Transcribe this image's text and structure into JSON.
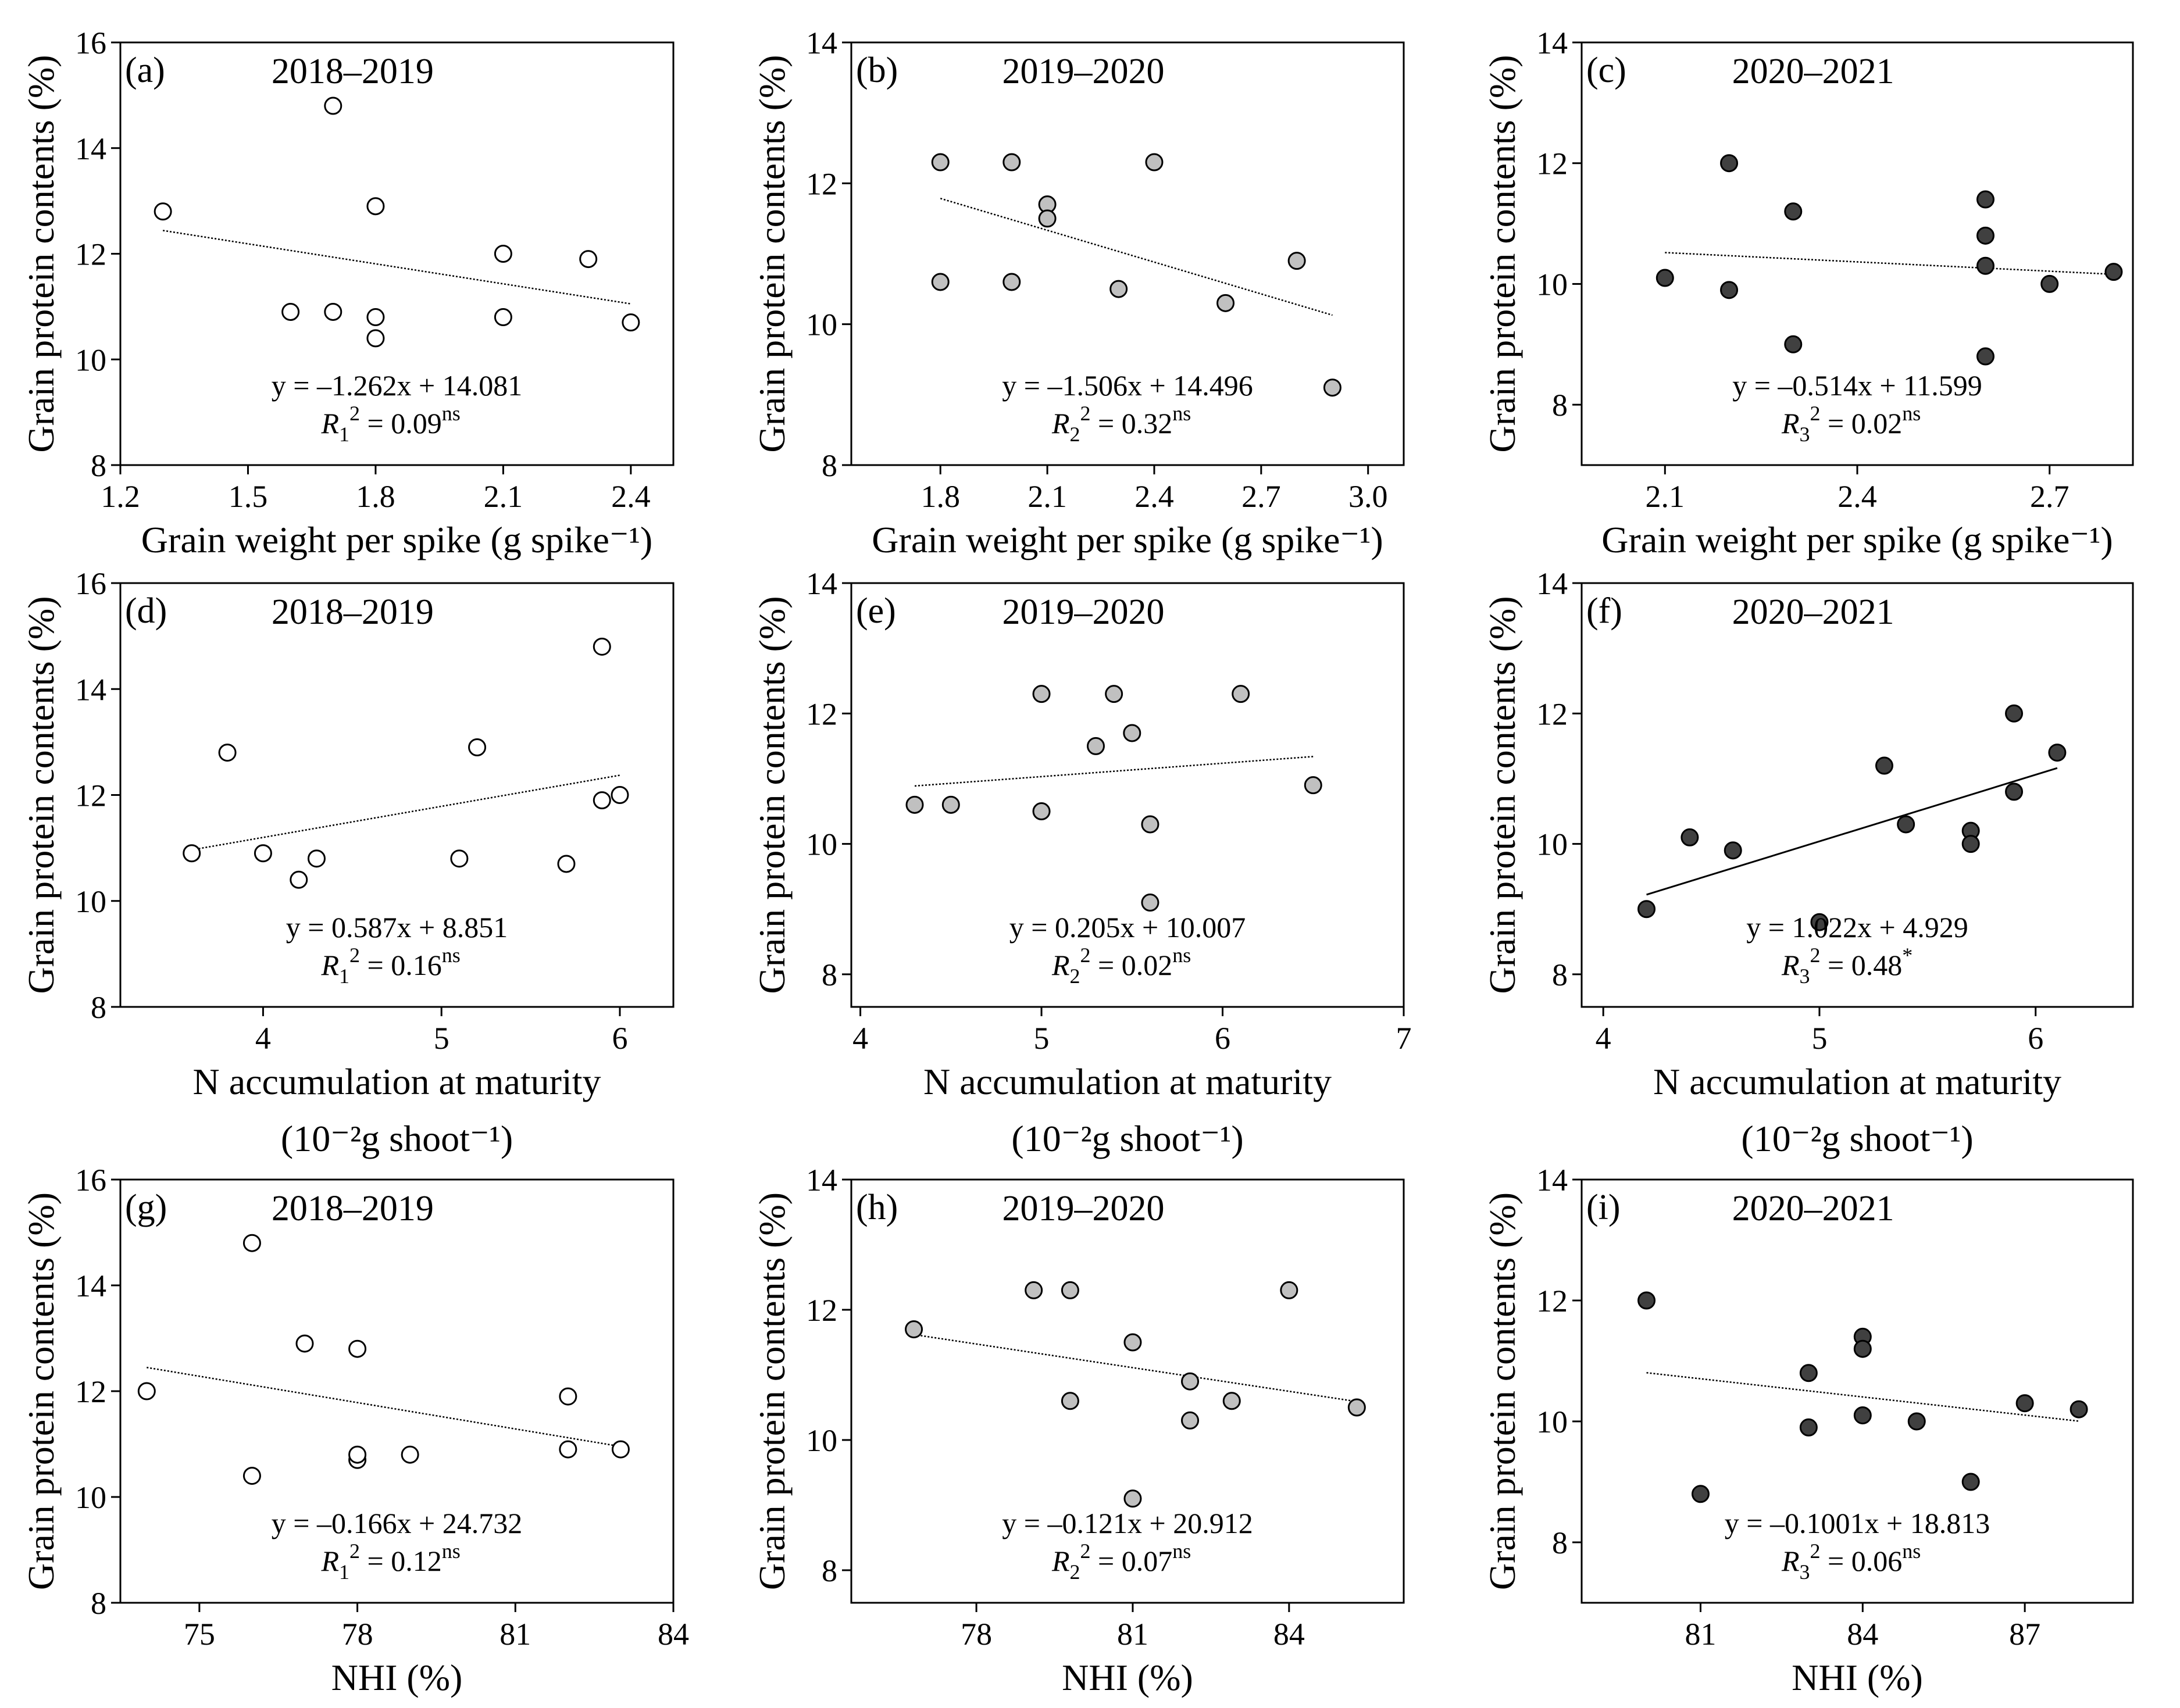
{
  "figure": {
    "panel_count": 9
  },
  "chart_data": [
    {
      "id": "a",
      "panel_label": "(a)",
      "type": "scatter",
      "title": "2018–2019",
      "xlabel": "Grain weight per spike  (g spike⁻¹)",
      "xlabel2": "",
      "ylabel": "Grain protein contents (%)",
      "xlim": [
        1.2,
        2.5
      ],
      "ylim": [
        8,
        16
      ],
      "xticks": [
        "1.2",
        "1.5",
        "1.8",
        "2.1",
        "2.4"
      ],
      "xtick_values": [
        1.2,
        1.5,
        1.8,
        2.1,
        2.4
      ],
      "yticks": [
        "8",
        "10",
        "12",
        "14",
        "16"
      ],
      "ytick_values": [
        8,
        10,
        12,
        14,
        16
      ],
      "series": [
        {
          "name": "2018–2019",
          "marker_color": "#ffffff",
          "x": [
            1.3,
            1.6,
            1.7,
            1.7,
            1.8,
            1.8,
            1.8,
            2.1,
            2.1,
            2.3,
            2.4
          ],
          "y": [
            12.8,
            10.9,
            14.8,
            10.9,
            12.9,
            10.8,
            10.4,
            12.0,
            10.8,
            11.9,
            10.7
          ]
        }
      ],
      "fit": {
        "slope": -1.262,
        "intercept": 14.081,
        "x_range": [
          1.3,
          2.4
        ],
        "style": "dotted"
      },
      "equation": "y = –1.262x + 14.081",
      "r2_label": "R",
      "r2_sub": "1",
      "r2_sup": "2",
      "r2_value": "= 0.09",
      "significance": "ns"
    },
    {
      "id": "b",
      "panel_label": "(b)",
      "type": "scatter",
      "title": "2019–2020",
      "xlabel": "Grain weight per spike  (g spike⁻¹)",
      "xlabel2": "",
      "ylabel": "Grain protein contents (%)",
      "xlim": [
        1.55,
        3.1
      ],
      "ylim": [
        8,
        14
      ],
      "xticks": [
        "1.8",
        "2.1",
        "2.4",
        "2.7",
        "3.0"
      ],
      "xtick_values": [
        1.8,
        2.1,
        2.4,
        2.7,
        3.0
      ],
      "yticks": [
        "8",
        "10",
        "12",
        "14"
      ],
      "ytick_values": [
        8,
        10,
        12,
        14
      ],
      "series": [
        {
          "name": "2019–2020",
          "marker_color": "#c0c0c0",
          "x": [
            1.8,
            1.8,
            2.0,
            2.0,
            2.1,
            2.1,
            2.3,
            2.4,
            2.6,
            2.8,
            2.9
          ],
          "y": [
            12.3,
            10.6,
            12.3,
            10.6,
            11.7,
            11.5,
            10.5,
            12.3,
            10.3,
            10.9,
            9.1
          ]
        }
      ],
      "fit": {
        "slope": -1.506,
        "intercept": 14.496,
        "x_range": [
          1.8,
          2.9
        ],
        "style": "dotted"
      },
      "equation": "y = –1.506x + 14.496",
      "r2_label": "R",
      "r2_sub": "2",
      "r2_sup": "2",
      "r2_value": "= 0.32",
      "significance": "ns"
    },
    {
      "id": "c",
      "panel_label": "(c)",
      "type": "scatter",
      "title": "2020–2021",
      "xlabel": "Grain weight per spike  (g spike⁻¹)",
      "xlabel2": "",
      "ylabel": "Grain protein contents (%)",
      "xlim": [
        1.97,
        2.83
      ],
      "ylim": [
        7,
        14
      ],
      "xticks": [
        "2.1",
        "2.4",
        "2.7"
      ],
      "xtick_values": [
        2.1,
        2.4,
        2.7
      ],
      "yticks": [
        "8",
        "10",
        "12",
        "14"
      ],
      "ytick_values": [
        8,
        10,
        12,
        14
      ],
      "series": [
        {
          "name": "2020–2021",
          "marker_color": "#404040",
          "x": [
            2.1,
            2.2,
            2.2,
            2.3,
            2.3,
            2.6,
            2.6,
            2.6,
            2.6,
            2.7,
            2.8
          ],
          "y": [
            10.1,
            12.0,
            9.9,
            11.2,
            9.0,
            11.4,
            10.8,
            10.3,
            8.8,
            10.0,
            10.2
          ]
        }
      ],
      "fit": {
        "slope": -0.514,
        "intercept": 11.599,
        "x_range": [
          2.1,
          2.8
        ],
        "style": "dotted"
      },
      "equation": "y = –0.514x + 11.599",
      "r2_label": "R",
      "r2_sub": "3",
      "r2_sup": "2",
      "r2_value": "= 0.02",
      "significance": "ns"
    },
    {
      "id": "d",
      "panel_label": "(d)",
      "type": "scatter",
      "title": "2018–2019",
      "xlabel": "N accumulation at maturity",
      "xlabel2": "(10⁻²g shoot⁻¹)",
      "ylabel": "Grain protein contents (%)",
      "xlim": [
        3.2,
        6.3
      ],
      "ylim": [
        8,
        16
      ],
      "xticks": [
        "4",
        "5",
        "6"
      ],
      "xtick_values": [
        4,
        5,
        6
      ],
      "yticks": [
        "8",
        "10",
        "12",
        "14",
        "16"
      ],
      "ytick_values": [
        8,
        10,
        12,
        14,
        16
      ],
      "series": [
        {
          "name": "2018–2019",
          "marker_color": "#ffffff",
          "x": [
            3.6,
            3.8,
            4.0,
            4.2,
            4.3,
            5.1,
            5.2,
            5.7,
            5.9,
            5.9,
            6.0
          ],
          "y": [
            10.9,
            12.8,
            10.9,
            10.4,
            10.8,
            10.8,
            12.9,
            10.7,
            14.8,
            11.9,
            12.0
          ]
        }
      ],
      "fit": {
        "slope": 0.587,
        "intercept": 8.851,
        "x_range": [
          3.6,
          6.0
        ],
        "style": "dotted"
      },
      "equation": "y = 0.587x + 8.851",
      "r2_label": "R",
      "r2_sub": "1",
      "r2_sup": "2",
      "r2_value": "= 0.16",
      "significance": "ns"
    },
    {
      "id": "e",
      "panel_label": "(e)",
      "type": "scatter",
      "title": "2019–2020",
      "xlabel": "N accumulation at maturity",
      "xlabel2": "(10⁻²g shoot⁻¹)",
      "ylabel": "Grain protein contents (%)",
      "xlim": [
        3.95,
        7.0
      ],
      "ylim": [
        7.5,
        14
      ],
      "xticks": [
        "4",
        "5",
        "6",
        "7"
      ],
      "xtick_values": [
        4,
        5,
        6,
        7
      ],
      "yticks": [
        "8",
        "10",
        "12",
        "14"
      ],
      "ytick_values": [
        8,
        10,
        12,
        14
      ],
      "series": [
        {
          "name": "2019–2020",
          "marker_color": "#c0c0c0",
          "x": [
            4.3,
            4.5,
            5.0,
            5.0,
            5.3,
            5.4,
            5.5,
            5.6,
            5.6,
            6.1,
            6.5
          ],
          "y": [
            10.6,
            10.6,
            12.3,
            10.5,
            11.5,
            12.3,
            11.7,
            10.3,
            9.1,
            12.3,
            10.9
          ]
        }
      ],
      "fit": {
        "slope": 0.205,
        "intercept": 10.007,
        "x_range": [
          4.3,
          6.5
        ],
        "style": "dotted"
      },
      "equation": "y = 0.205x + 10.007",
      "r2_label": "R",
      "r2_sub": "2",
      "r2_sup": "2",
      "r2_value": "= 0.02",
      "significance": "ns"
    },
    {
      "id": "f",
      "panel_label": "(f)",
      "type": "scatter",
      "title": "2020–2021",
      "xlabel": "N accumulation at maturity",
      "xlabel2": "(10⁻²g shoot⁻¹)",
      "ylabel": "Grain protein contents (%)",
      "xlim": [
        3.9,
        6.45
      ],
      "ylim": [
        7.5,
        14
      ],
      "xticks": [
        "4",
        "5",
        "6"
      ],
      "xtick_values": [
        4,
        5,
        6
      ],
      "yticks": [
        "8",
        "10",
        "12",
        "14"
      ],
      "ytick_values": [
        8,
        10,
        12,
        14
      ],
      "series": [
        {
          "name": "2020–2021",
          "marker_color": "#404040",
          "x": [
            4.2,
            4.4,
            4.6,
            5.0,
            5.3,
            5.4,
            5.7,
            5.7,
            5.9,
            5.9,
            6.1
          ],
          "y": [
            9.0,
            10.1,
            9.9,
            8.8,
            11.2,
            10.3,
            10.2,
            10.0,
            12.0,
            10.8,
            11.4
          ]
        }
      ],
      "fit": {
        "slope": 1.022,
        "intercept": 4.929,
        "x_range": [
          4.2,
          6.1
        ],
        "style": "solid"
      },
      "equation": "y = 1.022x + 4.929",
      "r2_label": "R",
      "r2_sub": "3",
      "r2_sup": "2",
      "r2_value": "= 0.48",
      "significance": "*"
    },
    {
      "id": "g",
      "panel_label": "(g)",
      "type": "scatter",
      "title": "2018–2019",
      "xlabel": "NHI (%)",
      "xlabel2": "",
      "ylabel": "Grain protein contents (%)",
      "xlim": [
        73.5,
        84.0
      ],
      "ylim": [
        8,
        16
      ],
      "xticks": [
        "75",
        "78",
        "81",
        "84"
      ],
      "xtick_values": [
        75,
        78,
        81,
        84
      ],
      "yticks": [
        "8",
        "10",
        "12",
        "14",
        "16"
      ],
      "ytick_values": [
        8,
        10,
        12,
        14,
        16
      ],
      "series": [
        {
          "name": "2018–2019",
          "marker_color": "#ffffff",
          "x": [
            74.0,
            76.0,
            76.0,
            77.0,
            78.0,
            78.0,
            78.0,
            79.0,
            82.0,
            82.0,
            83.0
          ],
          "y": [
            12.0,
            14.8,
            10.4,
            12.9,
            12.8,
            10.7,
            10.8,
            10.8,
            11.9,
            10.9,
            10.9
          ]
        }
      ],
      "fit": {
        "slope": -0.166,
        "intercept": 24.732,
        "x_range": [
          74.0,
          83.0
        ],
        "style": "dotted"
      },
      "equation": "y = –0.166x + 24.732",
      "r2_label": "R",
      "r2_sub": "1",
      "r2_sup": "2",
      "r2_value": "= 0.12",
      "significance": "ns"
    },
    {
      "id": "h",
      "panel_label": "(h)",
      "type": "scatter",
      "title": "2019–2020",
      "xlabel": "NHI (%)",
      "xlabel2": "",
      "ylabel": "Grain protein contents (%)",
      "xlim": [
        75.6,
        86.2
      ],
      "ylim": [
        7.5,
        14
      ],
      "xticks": [
        "78",
        "81",
        "84"
      ],
      "xtick_values": [
        78,
        81,
        84
      ],
      "yticks": [
        "8",
        "10",
        "12",
        "14"
      ],
      "ytick_values": [
        8,
        10,
        12,
        14
      ],
      "series": [
        {
          "name": "2019–2020",
          "marker_color": "#c0c0c0",
          "x": [
            76.8,
            79.1,
            79.8,
            79.8,
            81.0,
            81.0,
            82.1,
            82.1,
            82.9,
            84.0,
            85.3
          ],
          "y": [
            11.7,
            12.3,
            12.3,
            10.6,
            11.5,
            9.1,
            10.9,
            10.3,
            10.6,
            12.3,
            10.5
          ]
        }
      ],
      "fit": {
        "slope": -0.121,
        "intercept": 20.912,
        "x_range": [
          76.8,
          85.3
        ],
        "style": "dotted"
      },
      "equation": "y = –0.121x + 20.912",
      "r2_label": "R",
      "r2_sub": "2",
      "r2_sup": "2",
      "r2_value": "= 0.07",
      "significance": "ns"
    },
    {
      "id": "i",
      "panel_label": "(i)",
      "type": "scatter",
      "title": "2020–2021",
      "xlabel": "NHI (%)",
      "xlabel2": "",
      "ylabel": "Grain protein contents (%)",
      "xlim": [
        78.8,
        89.0
      ],
      "ylim": [
        7,
        14
      ],
      "xticks": [
        "81",
        "84",
        "87"
      ],
      "xtick_values": [
        81,
        84,
        87
      ],
      "yticks": [
        "8",
        "10",
        "12",
        "14"
      ],
      "ytick_values": [
        8,
        10,
        12,
        14
      ],
      "series": [
        {
          "name": "2020–2021",
          "marker_color": "#404040",
          "x": [
            80.0,
            81.0,
            83.0,
            83.0,
            84.0,
            84.0,
            84.0,
            85.0,
            86.0,
            87.0,
            88.0
          ],
          "y": [
            12.0,
            8.8,
            10.8,
            9.9,
            11.4,
            11.2,
            10.1,
            10.0,
            9.0,
            10.3,
            10.2
          ]
        }
      ],
      "fit": {
        "slope": -0.1001,
        "intercept": 18.813,
        "x_range": [
          80.0,
          88.0
        ],
        "style": "dotted"
      },
      "equation": "y = –0.1001x + 18.813",
      "r2_label": "R",
      "r2_sub": "3",
      "r2_sup": "2",
      "r2_value": "= 0.06",
      "significance": "ns"
    }
  ]
}
